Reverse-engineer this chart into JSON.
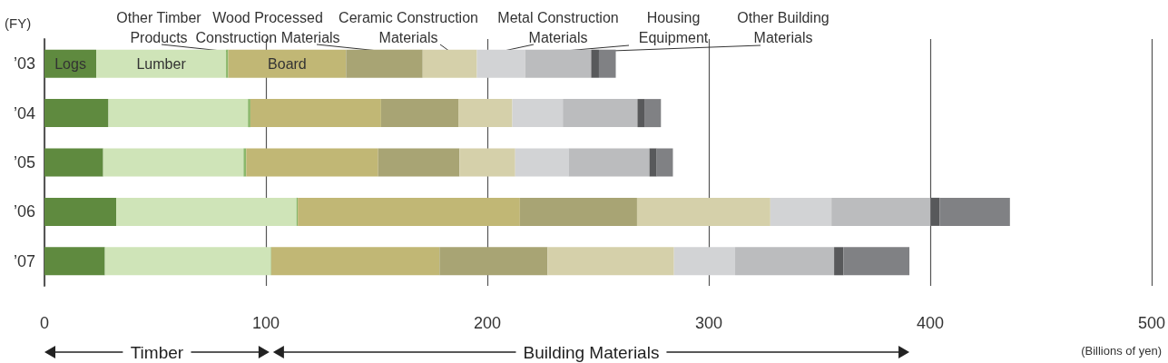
{
  "chart_data": {
    "type": "bar",
    "orientation": "horizontal",
    "stacked": true,
    "categories": [
      "’03",
      "’04",
      "’05",
      "’06",
      "’07"
    ],
    "ylabel": "(FY)",
    "xlabel": "(Billions of yen)",
    "xlim": [
      0,
      500
    ],
    "xticks": [
      0,
      100,
      200,
      300,
      400,
      500
    ],
    "grid": "x",
    "legend": false,
    "annotations": [
      "Timber",
      "Building Materials"
    ],
    "series": [
      {
        "name": "Logs",
        "color": "#5f8a3f",
        "values": [
          23.4,
          28.9,
          26.5,
          32.4,
          27.3
        ]
      },
      {
        "name": "Lumber",
        "color": "#cfe4b8",
        "values": [
          58.6,
          63.0,
          63.4,
          81.4,
          74.9
        ]
      },
      {
        "name": "Other Timber Products",
        "color": "#8ab86a",
        "values": [
          1.0,
          1.1,
          1.2,
          0.6,
          0.2
        ]
      },
      {
        "name": "Board",
        "color": "#c1b775",
        "values": [
          53.2,
          59.0,
          59.6,
          100.3,
          76.0
        ]
      },
      {
        "name": "Wood Processed Construction Materials",
        "color": "#a8a474",
        "values": [
          34.6,
          34.9,
          36.7,
          52.9,
          48.8
        ]
      },
      {
        "name": "Ceramic Construction Materials",
        "color": "#d5d0aa",
        "values": [
          24.5,
          24.4,
          25.2,
          60.2,
          57.1
        ]
      },
      {
        "name": "Metal Construction Materials",
        "color": "#d2d3d5",
        "values": [
          21.8,
          22.8,
          24.1,
          27.6,
          27.6
        ]
      },
      {
        "name": "Housing Equipment",
        "color": "#bbbcbe",
        "values": [
          29.8,
          33.7,
          36.5,
          44.8,
          44.7
        ]
      },
      {
        "name": "Other Building Materials",
        "color": "#58595b",
        "values": [
          3.5,
          3.4,
          3.3,
          4.1,
          4.2
        ]
      },
      {
        "color": "#808184",
        "values": [
          7.6,
          7.2,
          7.3,
          31.7,
          29.8
        ]
      }
    ]
  }
}
